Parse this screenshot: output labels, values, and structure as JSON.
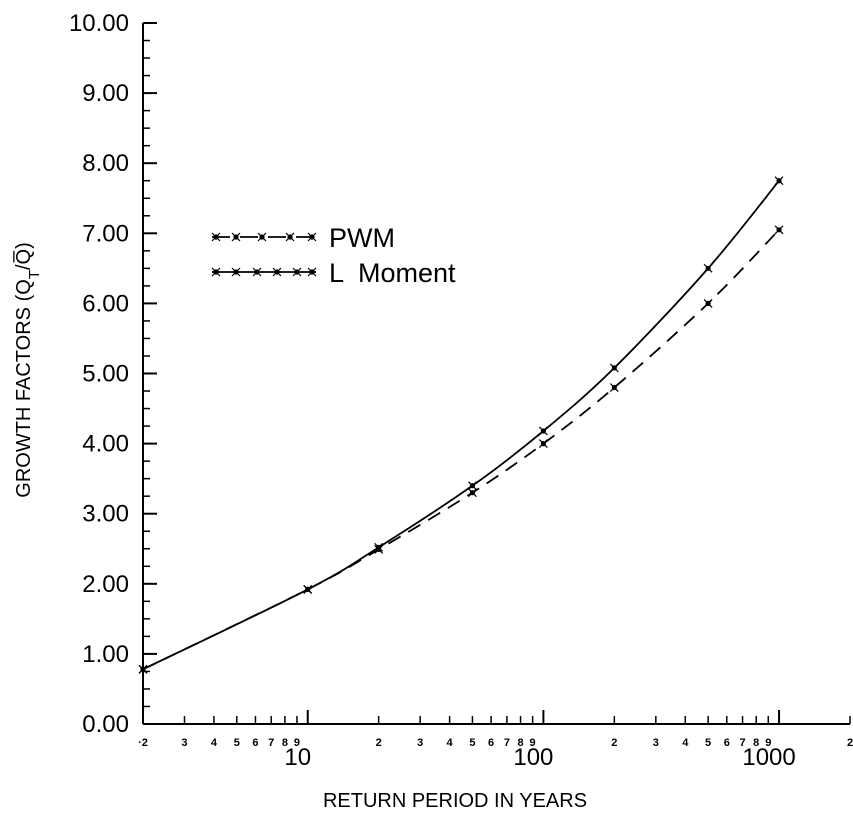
{
  "chart_data": {
    "type": "line",
    "xscale": "log",
    "xlim": [
      2,
      2000
    ],
    "ylim": [
      0,
      10
    ],
    "xlabel": "RETURN PERIOD IN YEARS",
    "ylabel": "GROWTH FACTORS (Q",
    "ylabel_sub": "T",
    "ylabel_tail": "/Q̅)",
    "y_ticks": [
      "0.00",
      "1.00",
      "2.00",
      "3.00",
      "4.00",
      "5.00",
      "6.00",
      "7.00",
      "8.00",
      "9.00",
      "10.00"
    ],
    "y_tick_values": [
      0,
      1,
      2,
      3,
      4,
      5,
      6,
      7,
      8,
      9,
      10
    ],
    "x_major_labels": [
      {
        "value": 10,
        "label": "10"
      },
      {
        "value": 100,
        "label": "100"
      },
      {
        "value": 1000,
        "label": "1000"
      }
    ],
    "x_minor_labels": [
      {
        "value": 2,
        "label": "·2"
      },
      {
        "value": 3,
        "label": "3"
      },
      {
        "value": 4,
        "label": "4"
      },
      {
        "value": 5,
        "label": "5"
      },
      {
        "value": 6,
        "label": "6"
      },
      {
        "value": 7,
        "label": "7"
      },
      {
        "value": 8,
        "label": "8"
      },
      {
        "value": 9,
        "label": "9"
      },
      {
        "value": 20,
        "label": "2"
      },
      {
        "value": 30,
        "label": "3"
      },
      {
        "value": 40,
        "label": "4"
      },
      {
        "value": 50,
        "label": "5"
      },
      {
        "value": 60,
        "label": "6"
      },
      {
        "value": 70,
        "label": "7"
      },
      {
        "value": 80,
        "label": "8"
      },
      {
        "value": 90,
        "label": "9"
      },
      {
        "value": 200,
        "label": "2"
      },
      {
        "value": 300,
        "label": "3"
      },
      {
        "value": 400,
        "label": "4"
      },
      {
        "value": 500,
        "label": "5"
      },
      {
        "value": 600,
        "label": "6"
      },
      {
        "value": 700,
        "label": "7"
      },
      {
        "value": 800,
        "label": "8"
      },
      {
        "value": 900,
        "label": "9"
      },
      {
        "value": 2000,
        "label": "2"
      }
    ],
    "legend_position": "upper-left",
    "series": [
      {
        "name": "PWM",
        "dash": true,
        "x": [
          2,
          10,
          20,
          50,
          100,
          200,
          500,
          1000
        ],
        "y": [
          0.78,
          1.92,
          2.49,
          3.3,
          4.0,
          4.8,
          6.0,
          7.05
        ]
      },
      {
        "name": "L  Moment",
        "dash": false,
        "x": [
          2,
          10,
          20,
          50,
          100,
          200,
          500,
          1000
        ],
        "y": [
          0.78,
          1.92,
          2.52,
          3.4,
          4.18,
          5.08,
          6.5,
          7.75
        ]
      }
    ]
  }
}
